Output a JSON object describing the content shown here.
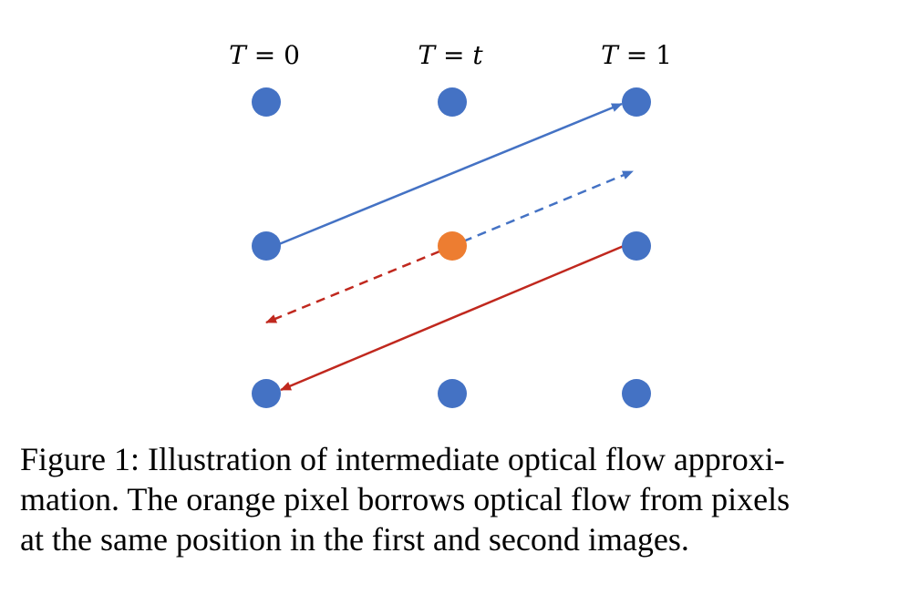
{
  "figure": {
    "column_labels": [
      {
        "var": "T",
        "eq": " = ",
        "val": "0",
        "val_italic": false
      },
      {
        "var": "T",
        "eq": " = ",
        "val": "t",
        "val_italic": true
      },
      {
        "var": "T",
        "eq": " = ",
        "val": "1",
        "val_italic": false
      }
    ],
    "colors": {
      "pixel": "#4472C4",
      "highlighted_pixel": "#ED7D31",
      "forward_flow": "#4472C4",
      "backward_flow": "#C0281E"
    }
  },
  "caption": {
    "lines": [
      "Figure 1: Illustration of intermediate optical flow approxi-",
      "mation. The orange pixel borrows optical flow from pixels",
      "at the same position in the first and second images."
    ]
  }
}
